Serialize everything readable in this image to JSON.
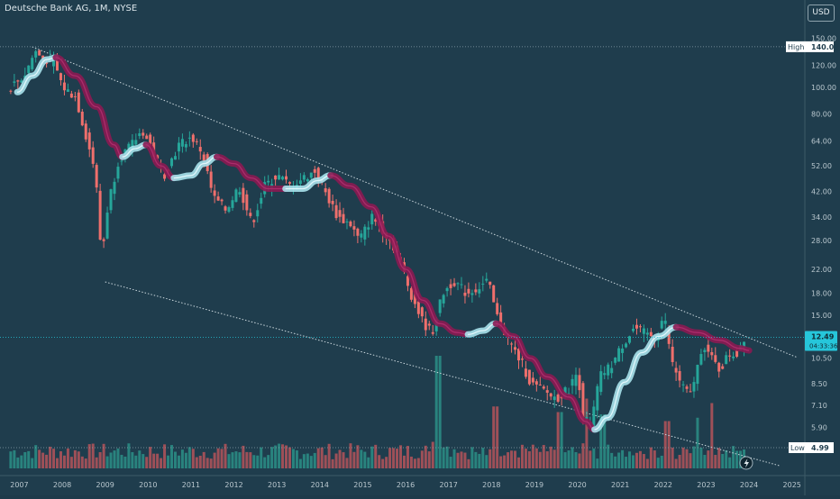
{
  "header": {
    "title": "Deutsche Bank AG, 1M, NYSE",
    "currency": "USD"
  },
  "colors": {
    "background": "#1f3d4d",
    "up": "#26a69a",
    "down": "#ef6f6c",
    "volume_up": "#2b8f87",
    "volume_down": "#b5535a",
    "ribbon_bear": "#8a1a52",
    "ribbon_bull": "#a9e2ec",
    "last_price_badge": "#26c6da"
  },
  "chart_data": {
    "type": "candlestick",
    "title": "Deutsche Bank AG, 1M, NYSE",
    "x_ticks": [
      "2007",
      "2008",
      "2009",
      "2010",
      "2011",
      "2012",
      "2013",
      "2014",
      "2015",
      "2016",
      "2017",
      "2018",
      "2019",
      "2020",
      "2021",
      "2022",
      "2023",
      "2024",
      "2025"
    ],
    "y_scale": "log",
    "y_ticks": [
      "150.00",
      "120.00",
      "100.00",
      "80.00",
      "64.00",
      "52.00",
      "42.00",
      "34.00",
      "28.00",
      "22.00",
      "18.00",
      "15.00",
      "10.50",
      "8.50",
      "7.10",
      "5.90"
    ],
    "ylim": [
      4.2,
      165
    ],
    "markers": {
      "high_label": "High",
      "high_value": "140.04",
      "low_label": "Low",
      "low_value": "4.99"
    },
    "last_price": {
      "value": "12.49",
      "countdown": "04:33:36"
    },
    "trend_channel": {
      "upper": [
        [
          2007.3,
          140.0
        ],
        [
          2025.1,
          10.6
        ]
      ],
      "lower": [
        [
          2009.0,
          19.8
        ],
        [
          2024.7,
          4.3
        ]
      ]
    },
    "price_path": [
      [
        2006.8,
        98
      ],
      [
        2007.2,
        110
      ],
      [
        2007.45,
        135
      ],
      [
        2007.6,
        128
      ],
      [
        2007.9,
        122
      ],
      [
        2008.1,
        100
      ],
      [
        2008.4,
        92
      ],
      [
        2008.6,
        70
      ],
      [
        2008.85,
        50
      ],
      [
        2009.0,
        24
      ],
      [
        2009.15,
        38
      ],
      [
        2009.4,
        55
      ],
      [
        2009.7,
        62
      ],
      [
        2009.95,
        70
      ],
      [
        2010.2,
        58
      ],
      [
        2010.45,
        48
      ],
      [
        2010.8,
        62
      ],
      [
        2011.1,
        66
      ],
      [
        2011.35,
        58
      ],
      [
        2011.6,
        40
      ],
      [
        2011.9,
        36
      ],
      [
        2012.2,
        44
      ],
      [
        2012.5,
        32
      ],
      [
        2012.8,
        44
      ],
      [
        2013.1,
        48
      ],
      [
        2013.4,
        44
      ],
      [
        2013.7,
        47
      ],
      [
        2014.0,
        50
      ],
      [
        2014.2,
        42
      ],
      [
        2014.5,
        34
      ],
      [
        2014.8,
        32
      ],
      [
        2015.0,
        28
      ],
      [
        2015.3,
        34
      ],
      [
        2015.6,
        30
      ],
      [
        2015.9,
        25
      ],
      [
        2016.2,
        18
      ],
      [
        2016.5,
        14
      ],
      [
        2016.7,
        13
      ],
      [
        2016.95,
        18
      ],
      [
        2017.2,
        20
      ],
      [
        2017.5,
        18
      ],
      [
        2017.8,
        19
      ],
      [
        2018.0,
        20
      ],
      [
        2018.2,
        15
      ],
      [
        2018.5,
        12
      ],
      [
        2018.8,
        10
      ],
      [
        2019.0,
        8.5
      ],
      [
        2019.3,
        8.0
      ],
      [
        2019.6,
        7.5
      ],
      [
        2019.9,
        8.2
      ],
      [
        2020.1,
        9.5
      ],
      [
        2020.2,
        6.5
      ],
      [
        2020.4,
        6.0
      ],
      [
        2020.6,
        9.0
      ],
      [
        2020.9,
        10
      ],
      [
        2021.1,
        11.5
      ],
      [
        2021.4,
        13.5
      ],
      [
        2021.7,
        12.8
      ],
      [
        2021.9,
        12.5
      ],
      [
        2022.1,
        15.0
      ],
      [
        2022.3,
        10.0
      ],
      [
        2022.5,
        8.5
      ],
      [
        2022.7,
        7.6
      ],
      [
        2022.9,
        10.0
      ],
      [
        2023.0,
        12.0
      ],
      [
        2023.2,
        10.5
      ],
      [
        2023.4,
        9.5
      ],
      [
        2023.6,
        10.8
      ],
      [
        2023.8,
        10.9
      ],
      [
        2023.95,
        12.49
      ]
    ],
    "ribbon": [
      {
        "trend": "bull",
        "points": [
          [
            2006.95,
            96
          ],
          [
            2007.3,
            110
          ],
          [
            2007.65,
            126
          ],
          [
            2007.85,
            128
          ]
        ]
      },
      {
        "trend": "bear",
        "points": [
          [
            2007.85,
            128
          ],
          [
            2008.3,
            110
          ],
          [
            2008.8,
            85
          ],
          [
            2009.2,
            62
          ],
          [
            2009.4,
            56
          ]
        ]
      },
      {
        "trend": "bull",
        "points": [
          [
            2009.4,
            56
          ],
          [
            2009.7,
            60
          ],
          [
            2009.95,
            62
          ]
        ]
      },
      {
        "trend": "bear",
        "points": [
          [
            2009.95,
            62
          ],
          [
            2010.3,
            52
          ],
          [
            2010.6,
            47
          ]
        ]
      },
      {
        "trend": "bull",
        "points": [
          [
            2010.6,
            47
          ],
          [
            2011.0,
            48
          ],
          [
            2011.3,
            53
          ],
          [
            2011.6,
            56
          ]
        ]
      },
      {
        "trend": "bear",
        "points": [
          [
            2011.6,
            56
          ],
          [
            2012.0,
            53
          ],
          [
            2012.4,
            47
          ],
          [
            2012.8,
            43
          ],
          [
            2013.2,
            43
          ]
        ]
      },
      {
        "trend": "bull",
        "points": [
          [
            2013.2,
            43
          ],
          [
            2013.6,
            43
          ],
          [
            2013.95,
            46
          ],
          [
            2014.25,
            48
          ]
        ]
      },
      {
        "trend": "bear",
        "points": [
          [
            2014.25,
            48
          ],
          [
            2014.7,
            44
          ],
          [
            2015.2,
            37
          ],
          [
            2015.6,
            29
          ],
          [
            2016.0,
            22
          ],
          [
            2016.4,
            17
          ],
          [
            2016.8,
            14
          ],
          [
            2017.2,
            13
          ],
          [
            2017.45,
            12.8
          ]
        ]
      },
      {
        "trend": "bull",
        "points": [
          [
            2017.45,
            12.8
          ],
          [
            2017.8,
            13.2
          ],
          [
            2018.1,
            14.0
          ]
        ]
      },
      {
        "trend": "bear",
        "points": [
          [
            2018.1,
            14.0
          ],
          [
            2018.5,
            12.6
          ],
          [
            2018.9,
            10.5
          ],
          [
            2019.3,
            9.0
          ],
          [
            2019.8,
            7.6
          ],
          [
            2020.2,
            6.2
          ],
          [
            2020.4,
            5.8
          ]
        ]
      },
      {
        "trend": "bull",
        "points": [
          [
            2020.4,
            5.8
          ],
          [
            2020.7,
            6.4
          ],
          [
            2021.1,
            8.6
          ],
          [
            2021.5,
            11.0
          ],
          [
            2021.9,
            12.6
          ],
          [
            2022.3,
            13.6
          ]
        ]
      },
      {
        "trend": "bear",
        "points": [
          [
            2022.3,
            13.6
          ],
          [
            2022.8,
            13.0
          ],
          [
            2023.3,
            12.2
          ],
          [
            2023.8,
            11.4
          ],
          [
            2024.0,
            11.2
          ]
        ]
      }
    ],
    "volume": {
      "peaks": [
        [
          2016.75,
          1.0
        ],
        [
          2018.1,
          0.55
        ],
        [
          2019.6,
          0.5
        ],
        [
          2020.2,
          0.62
        ],
        [
          2020.6,
          0.48
        ],
        [
          2022.1,
          0.42
        ],
        [
          2022.8,
          0.45
        ],
        [
          2023.15,
          0.58
        ]
      ],
      "baseline": 0.16
    }
  }
}
